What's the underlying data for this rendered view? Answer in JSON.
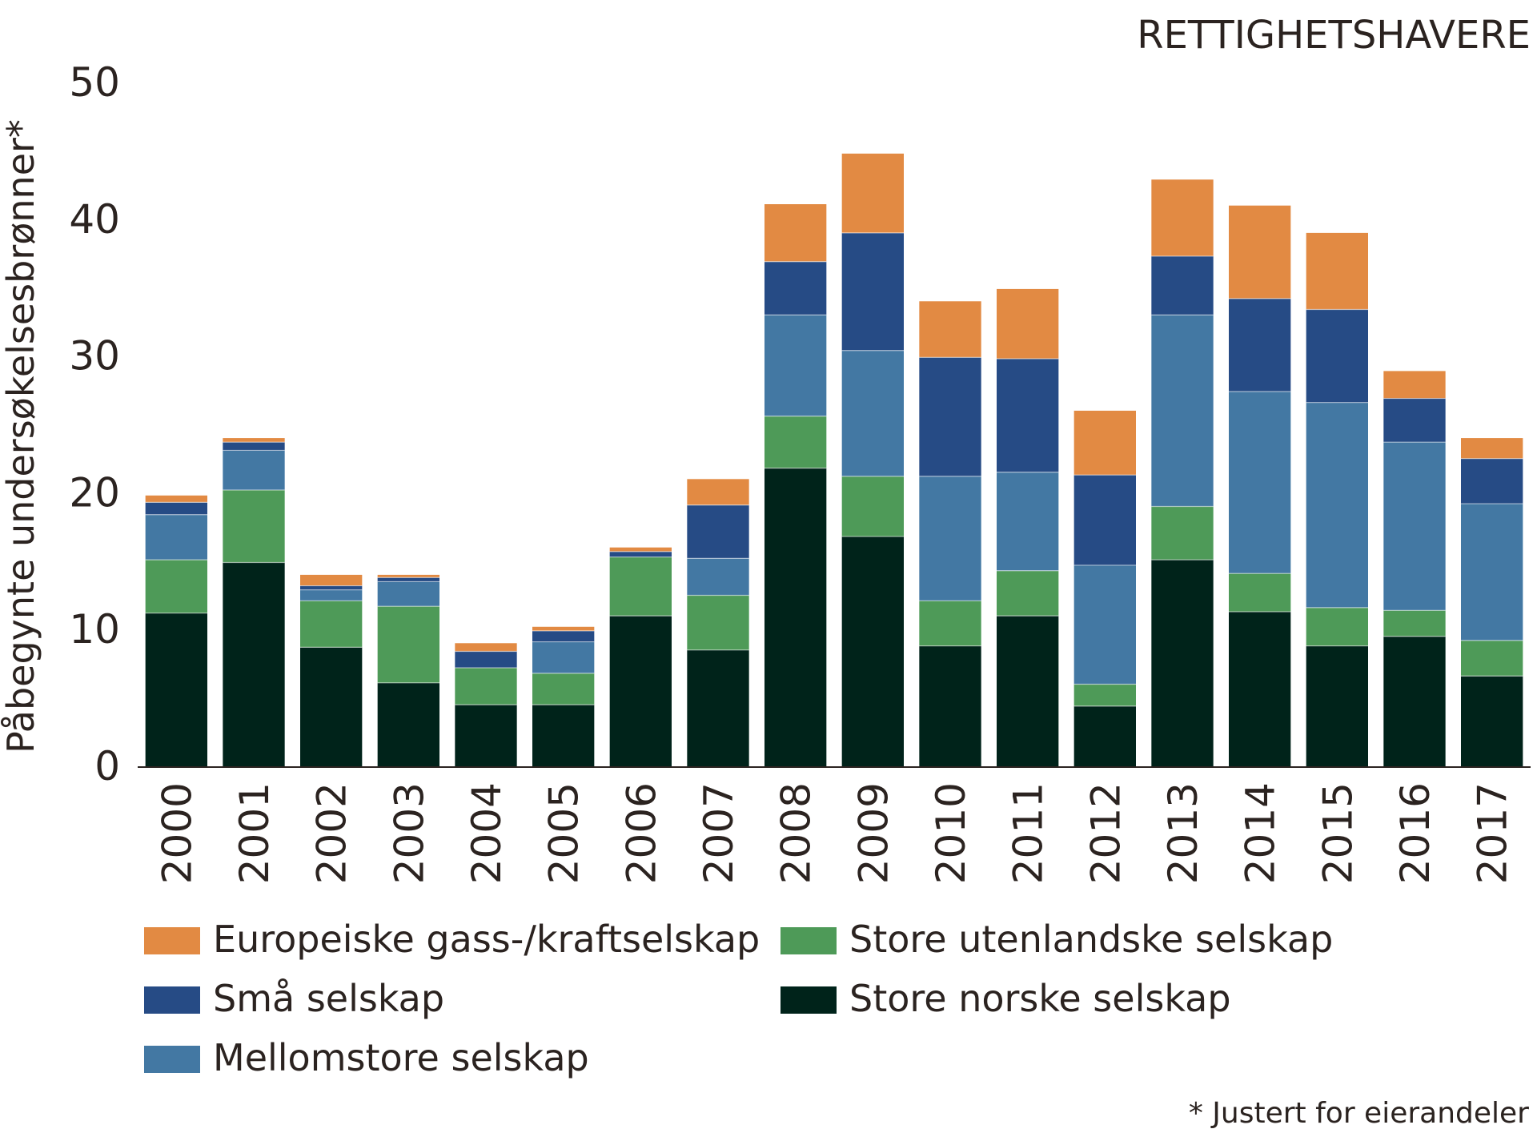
{
  "chart_data": {
    "type": "bar",
    "stacked": true,
    "title": "RETTIGHETSHAVERE",
    "ylabel": "Påbegynte undersøkelsesbrønner*",
    "xlabel": "",
    "ylim": [
      0,
      50
    ],
    "yticks": [
      0,
      10,
      20,
      30,
      40,
      50
    ],
    "grid": false,
    "legend_position": "bottom",
    "note": "* Justert for eierandeler",
    "categories": [
      "2000",
      "2001",
      "2002",
      "2003",
      "2004",
      "2005",
      "2006",
      "2007",
      "2008",
      "2009",
      "2010",
      "2011",
      "2012",
      "2013",
      "2014",
      "2015",
      "2016",
      "2017"
    ],
    "series": [
      {
        "name": "Store norske selskap",
        "color": "#00231a",
        "values": [
          11.2,
          14.9,
          8.7,
          6.1,
          4.5,
          4.5,
          11.0,
          8.5,
          21.8,
          16.8,
          8.8,
          11.0,
          4.4,
          15.1,
          11.3,
          8.8,
          9.5,
          6.6
        ]
      },
      {
        "name": "Store utenlandske selskap",
        "color": "#4e9a58",
        "values": [
          3.9,
          5.3,
          3.4,
          5.6,
          2.7,
          2.3,
          4.3,
          4.0,
          3.8,
          4.4,
          3.3,
          3.3,
          1.6,
          3.9,
          2.8,
          2.8,
          1.9,
          2.6
        ]
      },
      {
        "name": "Mellomstore selskap",
        "color": "#4378a3",
        "values": [
          3.3,
          2.9,
          0.8,
          1.8,
          0.0,
          2.3,
          0.0,
          2.7,
          7.4,
          9.2,
          9.1,
          7.2,
          8.7,
          14.0,
          13.3,
          15.0,
          12.3,
          10.0
        ]
      },
      {
        "name": "Små selskap",
        "color": "#264b85",
        "values": [
          0.9,
          0.6,
          0.3,
          0.3,
          1.2,
          0.8,
          0.4,
          3.9,
          3.9,
          8.6,
          8.7,
          8.3,
          6.6,
          4.3,
          6.8,
          6.8,
          3.2,
          3.3
        ]
      },
      {
        "name": "Europeiske gass-/kraftselskap",
        "color": "#e28a43",
        "values": [
          0.5,
          0.3,
          0.8,
          0.2,
          0.6,
          0.3,
          0.3,
          1.9,
          4.2,
          5.8,
          4.1,
          5.1,
          4.7,
          5.6,
          6.8,
          5.6,
          2.0,
          1.5
        ]
      }
    ],
    "legend_order": [
      4,
      1,
      3,
      0,
      2
    ]
  }
}
